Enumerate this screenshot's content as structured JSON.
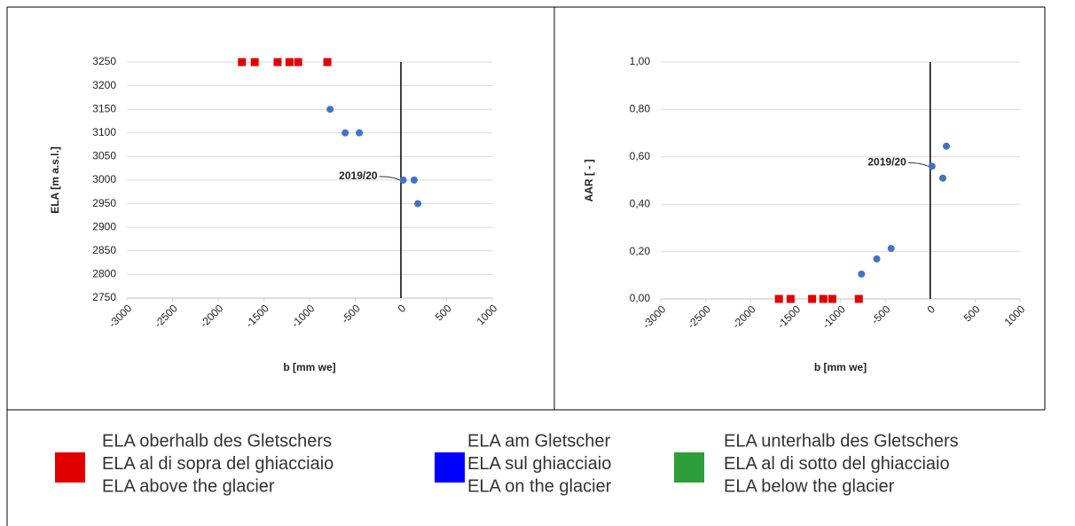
{
  "chart_data": [
    {
      "type": "scatter",
      "x_label": "b [mm we]",
      "y_label": "ELA [m a.s.l.]",
      "xlim": [
        -3000,
        1000
      ],
      "xticks": [
        -3000,
        -2500,
        -2000,
        -1500,
        -1000,
        -500,
        0,
        500,
        1000
      ],
      "ylim": [
        2750,
        3250
      ],
      "yticks": [
        2750,
        2800,
        2850,
        2900,
        2950,
        3000,
        3050,
        3100,
        3150,
        3200,
        3250
      ],
      "grid": true,
      "vline": 0,
      "annotation": "2019/20",
      "series": [
        {
          "color": "#e00000",
          "marker": "square",
          "x": [
            -1740,
            -1600,
            -1350,
            -1220,
            -1125,
            -805
          ],
          "values": [
            3250,
            3250,
            3250,
            3250,
            3250,
            3250
          ]
        },
        {
          "color": "#4472c4",
          "marker": "circle",
          "x": [
            -775,
            -610,
            -455,
            25,
            145,
            185
          ],
          "values": [
            3150,
            3100,
            3100,
            3000,
            3000,
            2950
          ]
        }
      ]
    },
    {
      "type": "scatter",
      "x_label": "b [mm we]",
      "y_label": "AAR [ - ]",
      "xlim": [
        -3000,
        1000
      ],
      "xticks": [
        -3000,
        -2500,
        -2000,
        -1500,
        -1000,
        -500,
        0,
        500,
        1000
      ],
      "ylim": [
        0,
        1
      ],
      "yticks": [
        {
          "value": 0,
          "label": "0,00"
        },
        {
          "value": 0.2,
          "label": "0,20"
        },
        {
          "value": 0.4,
          "label": "0,40"
        },
        {
          "value": 0.6,
          "label": "0,60"
        },
        {
          "value": 0.8,
          "label": "0,80"
        },
        {
          "value": 1,
          "label": "1,00"
        }
      ],
      "grid": true,
      "vline": 0,
      "annotation": "2019/20",
      "series": [
        {
          "color": "#e00000",
          "marker": "square",
          "x": [
            -1685,
            -1555,
            -1315,
            -1190,
            -1090,
            -795
          ],
          "values": [
            0,
            0,
            0,
            0,
            0,
            0
          ]
        },
        {
          "color": "#4472c4",
          "marker": "circle",
          "x": [
            -765,
            -595,
            -435,
            20,
            140,
            180
          ],
          "values": [
            0.105,
            0.169,
            0.213,
            0.56,
            0.51,
            0.645
          ]
        }
      ]
    }
  ],
  "legend": {
    "items": [
      {
        "color": "#e00000",
        "lines": [
          "ELA oberhalb des Gletschers",
          "ELA al di sopra del ghiacciaio",
          "ELA above the glacier"
        ]
      },
      {
        "color": "#0000ff",
        "lines": [
          "ELA am Gletscher",
          "ELA sul ghiacciaio",
          "ELA on the glacier"
        ]
      },
      {
        "color": "#2e9e3a",
        "lines": [
          "ELA unterhalb des Gletschers",
          "ELA al di sotto del ghiacciaio",
          "ELA below the glacier"
        ]
      }
    ]
  }
}
